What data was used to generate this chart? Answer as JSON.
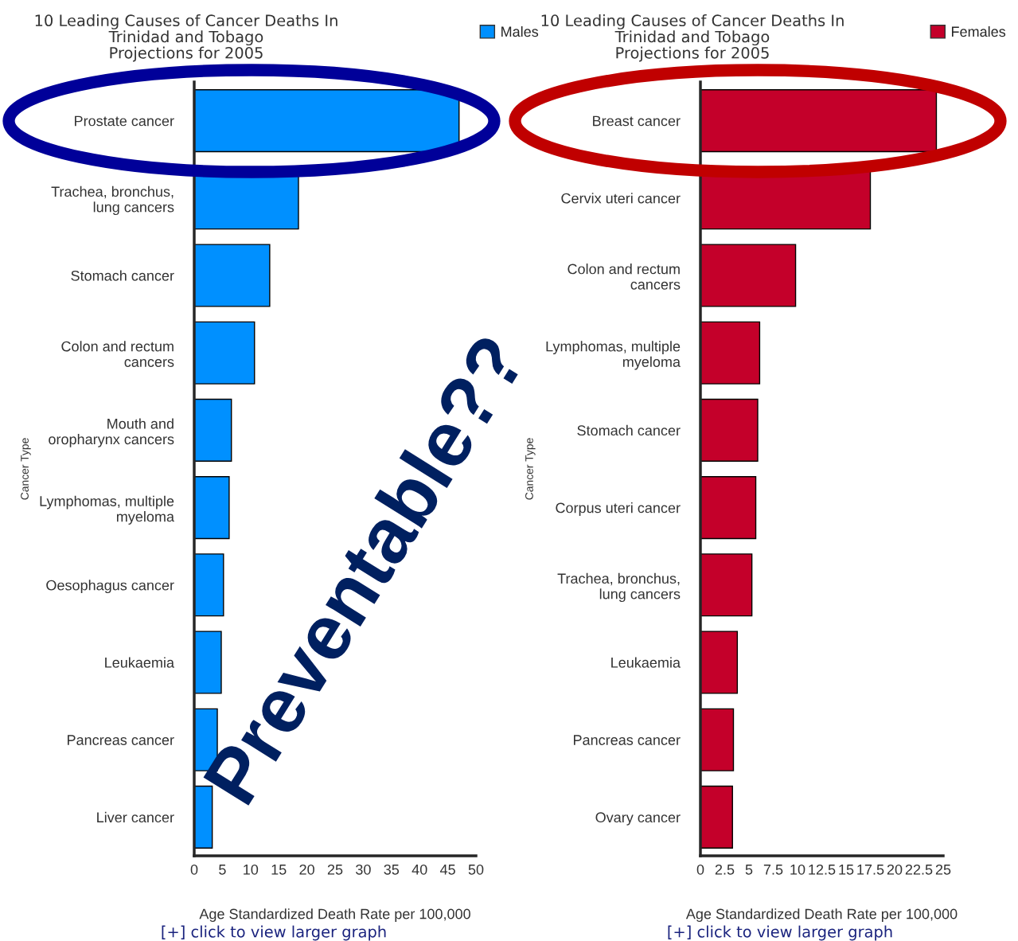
{
  "chart_data": [
    {
      "type": "bar",
      "orientation": "horizontal",
      "title": "10 Leading Causes of Cancer Deaths In\nTrinidad and Tobago\nProjections for 2005",
      "categories": [
        "Prostate cancer",
        "Trachea, bronchus,\nlung cancers",
        "Stomach cancer",
        "Colon and rectum\ncancers",
        "Mouth and\noropharynx cancers",
        "Lymphomas, multiple\nmyeloma",
        "Oesophagus cancer",
        "Leukaemia",
        "Pancreas cancer",
        "Liver cancer"
      ],
      "series": [
        {
          "name": "Males",
          "color": "#0090ff",
          "values": [
            47.0,
            18.5,
            13.4,
            10.7,
            6.6,
            6.2,
            5.2,
            4.8,
            4.1,
            3.2
          ]
        }
      ],
      "xlim": [
        0,
        50
      ],
      "xticks": [
        0,
        5,
        10,
        15,
        20,
        25,
        30,
        35,
        40,
        45,
        50
      ],
      "xlabel": "Age Standardized Death Rate per 100,000",
      "ylabel": "Cancer Type",
      "legend": "top right",
      "grid": false,
      "annotations": [
        "[+] click to view larger graph",
        "Preventable??"
      ]
    },
    {
      "type": "bar",
      "orientation": "horizontal",
      "title": "10 Leading Causes of Cancer Deaths In\nTrinidad and Tobago\nProjections for 2005",
      "categories": [
        "Breast cancer",
        "Cervix uteri cancer",
        "Colon and rectum\ncancers",
        "Lymphomas, multiple\nmyeloma",
        "Stomach cancer",
        "Corpus uteri cancer",
        "Trachea, bronchus,\nlung cancers",
        "Leukaemia",
        "Pancreas cancer",
        "Ovary cancer"
      ],
      "series": [
        {
          "name": "Females",
          "color": "#c4002a",
          "values": [
            24.3,
            17.5,
            9.8,
            6.1,
            5.9,
            5.7,
            5.3,
            3.8,
            3.4,
            3.3
          ]
        }
      ],
      "xlim": [
        0,
        25
      ],
      "xticks": [
        0,
        2.5,
        5,
        7.5,
        10,
        12.5,
        15,
        17.5,
        20,
        22.5,
        25
      ],
      "xlabel": "Age Standardized Death Rate per 100,000",
      "ylabel": "Cancer Type",
      "legend": "top right",
      "grid": false,
      "annotations": [
        "[+] click to view larger graph"
      ]
    }
  ]
}
